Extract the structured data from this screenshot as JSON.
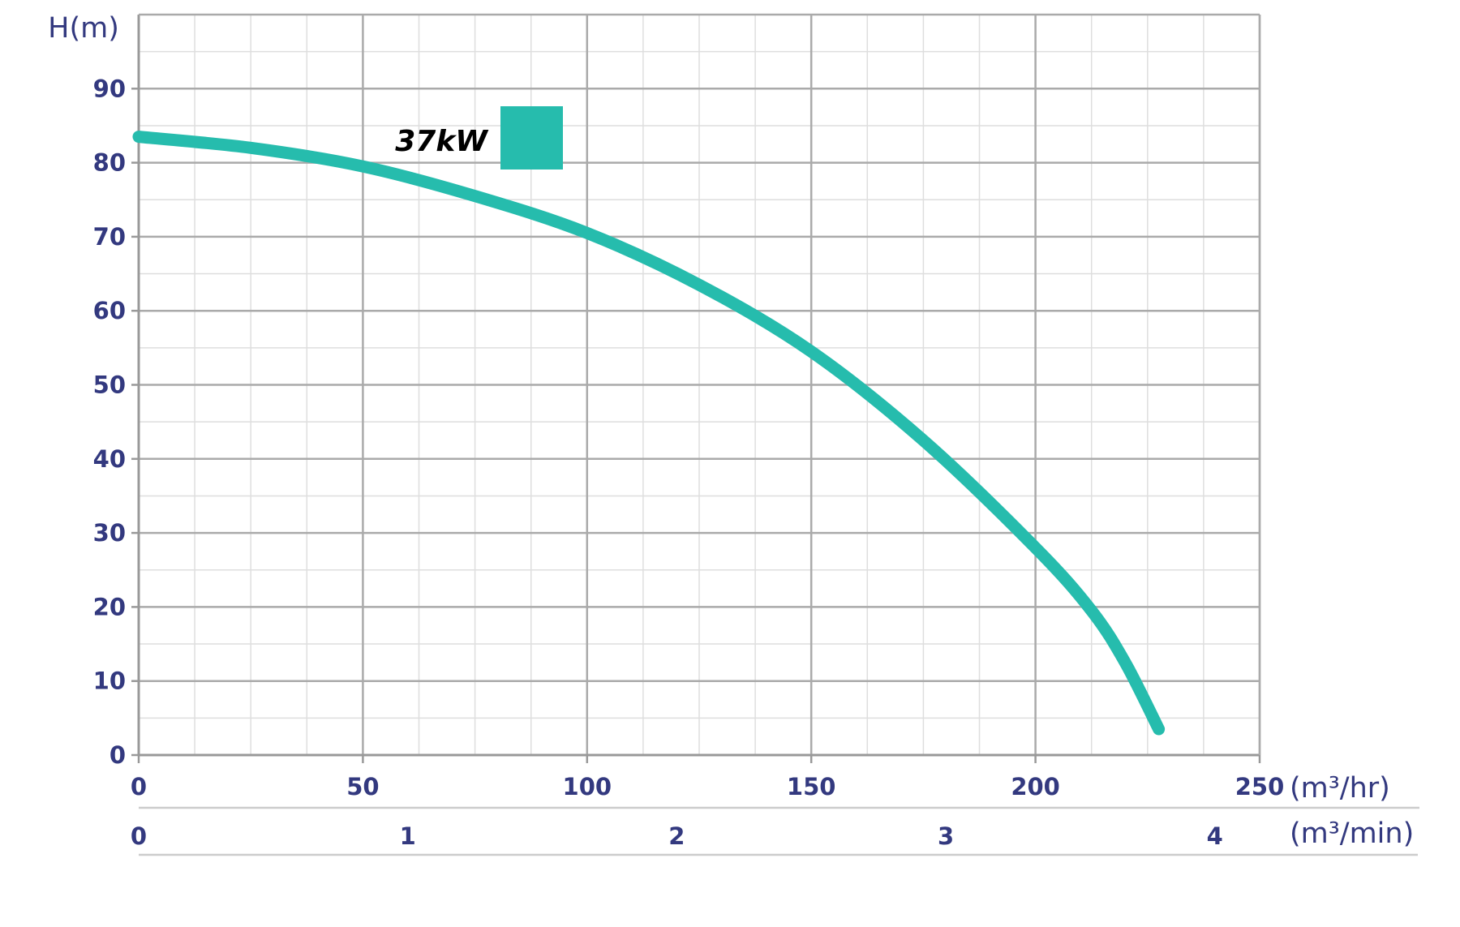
{
  "chart_data": {
    "type": "line",
    "title": "",
    "ylabel": "H(m)",
    "xlabel": "(m³/hr)",
    "x2label": "(m³/min)",
    "xlim": [
      0,
      250
    ],
    "ylim": [
      0,
      100
    ],
    "x_ticks": [
      "0",
      "50",
      "100",
      "150",
      "200",
      "250"
    ],
    "x_tick_values": [
      0,
      50,
      100,
      150,
      200,
      250
    ],
    "x2_ticks": [
      "0",
      "1",
      "2",
      "3",
      "4"
    ],
    "x2_tick_values": [
      0,
      1,
      2,
      3,
      4
    ],
    "y_ticks": [
      "0",
      "10",
      "20",
      "30",
      "40",
      "50",
      "60",
      "70",
      "80",
      "90"
    ],
    "y_tick_values": [
      0,
      10,
      20,
      30,
      40,
      50,
      60,
      70,
      80,
      90
    ],
    "minor_grid_step_x": 12.5,
    "minor_grid_step_y": 5,
    "grid": true,
    "legend_position": "top-left",
    "series": [
      {
        "name": "37kW",
        "color": "#26bcad",
        "x": [
          0,
          25,
          50,
          75,
          100,
          125,
          150,
          175,
          200,
          212.5,
          220,
          227.5
        ],
        "y": [
          83.5,
          82,
          79.5,
          75.5,
          70.5,
          63.5,
          54.5,
          42.5,
          28,
          19.5,
          12.5,
          3.5
        ]
      }
    ]
  }
}
